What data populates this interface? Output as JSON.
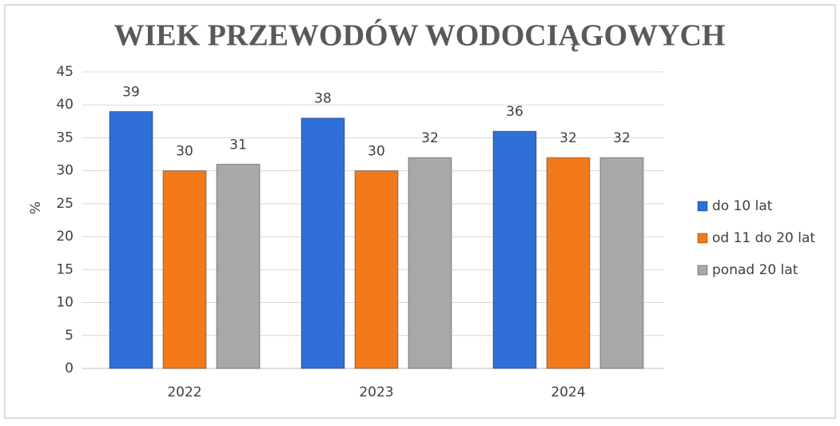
{
  "chart_data": {
    "type": "bar",
    "title": "WIEK PRZEWODÓW WODOCIĄGOWYCH",
    "y_label": "%",
    "categories": [
      "2022",
      "2023",
      "2024"
    ],
    "series": [
      {
        "name": "do 10 lat",
        "color": "#2f6fd8",
        "values": [
          39,
          38,
          36
        ]
      },
      {
        "name": "od 11 do 20 lat",
        "color": "#f27a1a",
        "values": [
          30,
          30,
          32
        ]
      },
      {
        "name": "ponad 20 lat",
        "color": "#a8a8a8",
        "values": [
          31,
          32,
          32
        ]
      }
    ],
    "ylim": [
      0,
      45
    ],
    "yticks": [
      0,
      5,
      10,
      15,
      20,
      25,
      30,
      35,
      40,
      45
    ],
    "grid": true,
    "legend": "right"
  }
}
